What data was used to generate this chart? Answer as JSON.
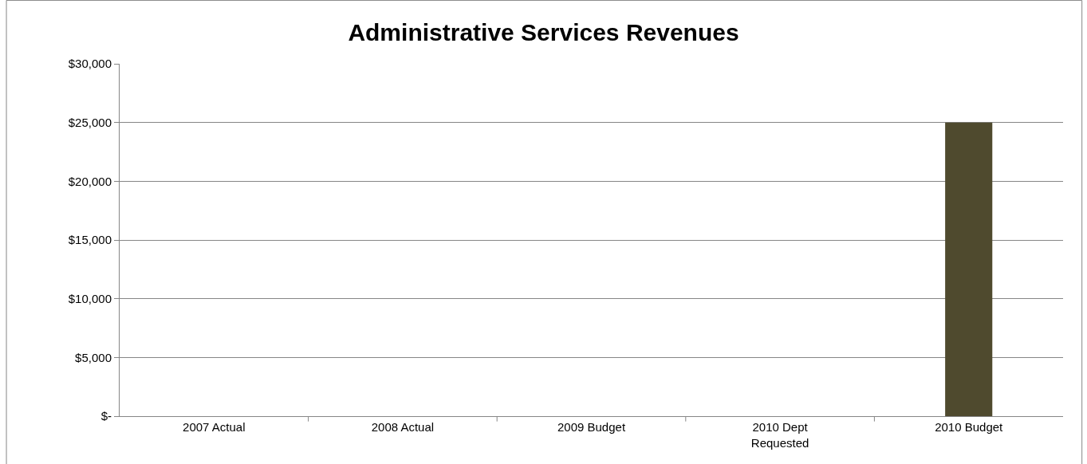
{
  "chart_data": {
    "type": "bar",
    "title": "Administrative Services Revenues",
    "categories": [
      "2007 Actual",
      "2008 Actual",
      "2009 Budget",
      "2010 Dept Requested",
      "2010 Budget"
    ],
    "values": [
      0,
      0,
      0,
      0,
      25000
    ],
    "color": "#4f4a2e",
    "ylim": [
      0,
      30000
    ],
    "yticks": [
      {
        "value": 0,
        "label": "$-"
      },
      {
        "value": 5000,
        "label": "$5,000"
      },
      {
        "value": 10000,
        "label": "$10,000"
      },
      {
        "value": 15000,
        "label": "$15,000"
      },
      {
        "value": 20000,
        "label": "$20,000"
      },
      {
        "value": 25000,
        "label": "$25,000"
      },
      {
        "value": 30000,
        "label": "$30,000"
      }
    ],
    "grid": "y"
  }
}
